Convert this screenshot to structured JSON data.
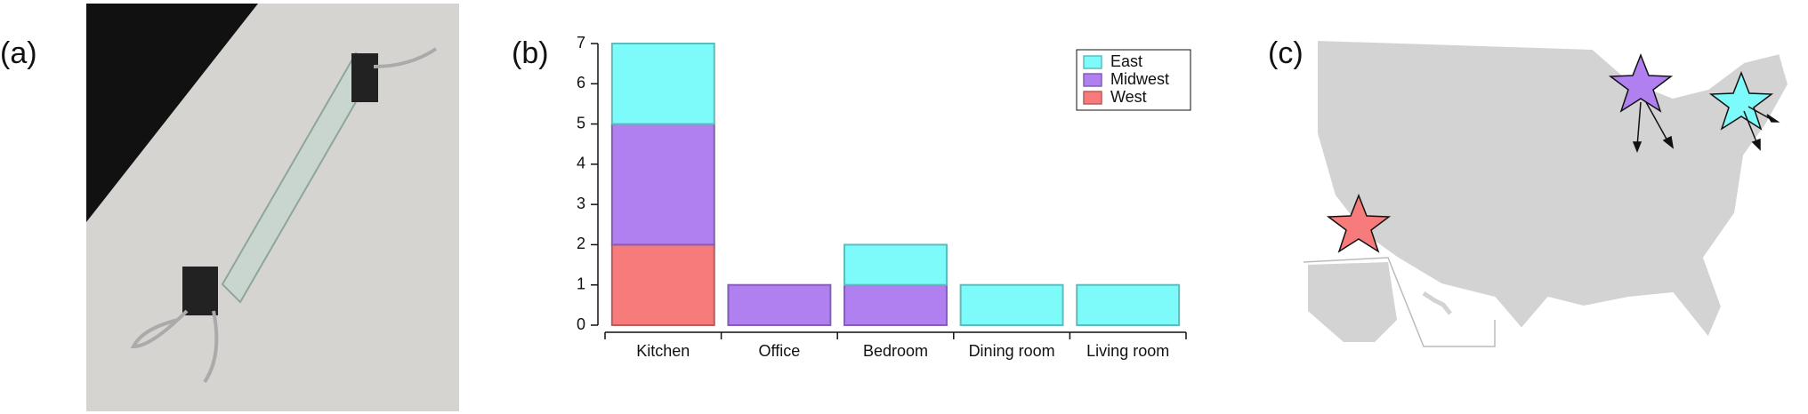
{
  "panel_labels": [
    "(a)",
    "(b)",
    "(c)"
  ],
  "chart_data": {
    "type": "stacked_bar",
    "categories": [
      "Kitchen",
      "Office",
      "Bedroom",
      "Dining room",
      "Living room"
    ],
    "series": [
      {
        "name": "East",
        "color": "#7dfbfb",
        "values": [
          2,
          0,
          1,
          1,
          1
        ]
      },
      {
        "name": "Midwest",
        "color": "#b07ff0",
        "values": [
          3,
          1,
          1,
          0,
          0
        ]
      },
      {
        "name": "West",
        "color": "#f77b7b",
        "values": [
          2,
          0,
          0,
          0,
          0
        ]
      }
    ],
    "ylim": [
      0,
      7
    ],
    "yticks": [
      0,
      1,
      2,
      3,
      4,
      5,
      6,
      7
    ],
    "grid": false,
    "legend": "upper right"
  }
}
